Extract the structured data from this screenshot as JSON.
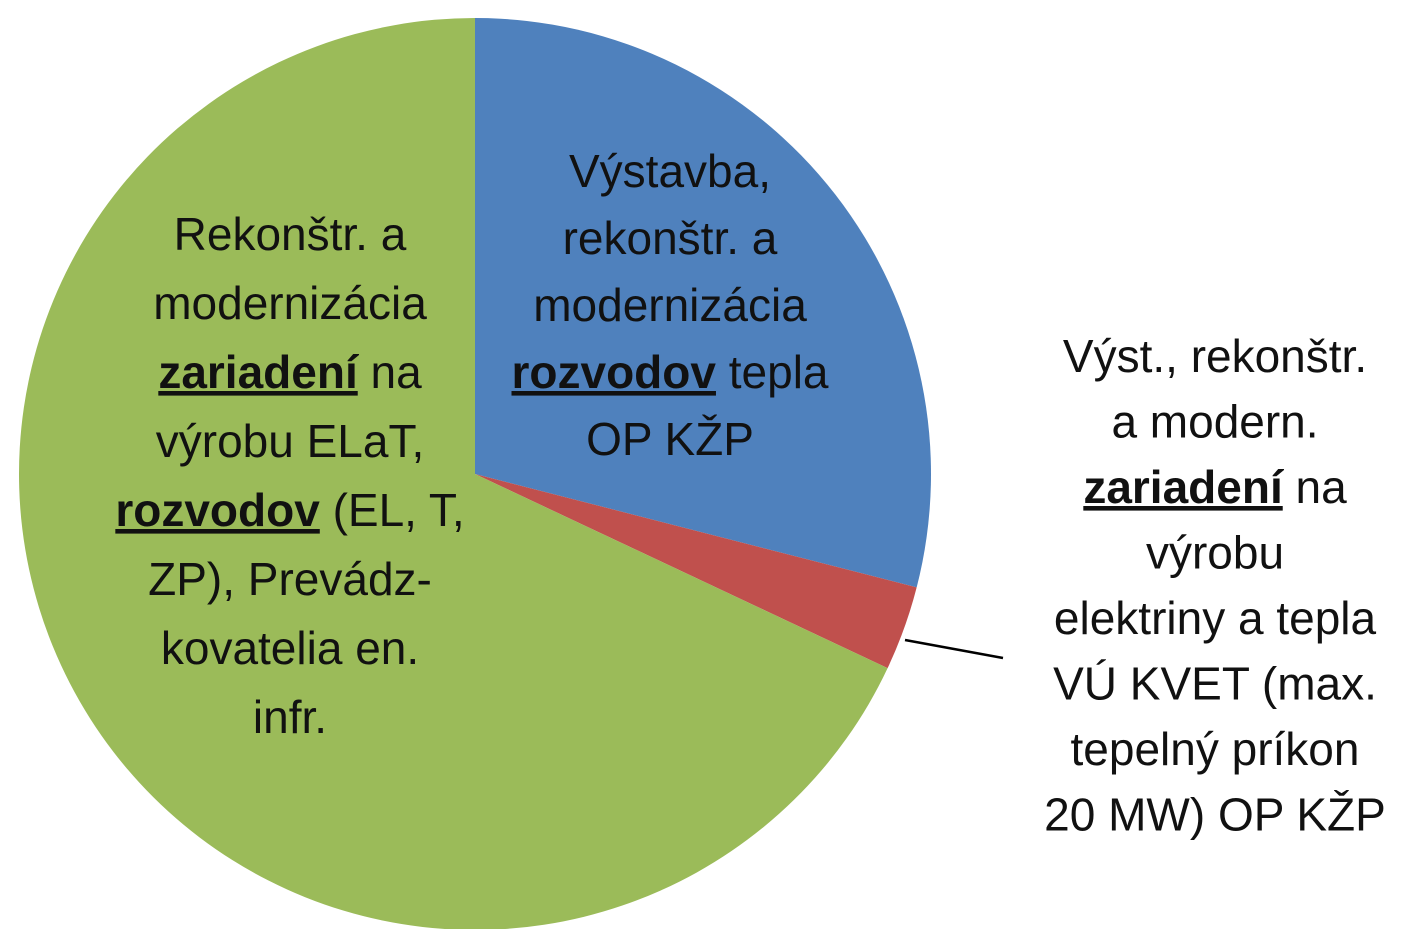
{
  "chart_data": {
    "type": "pie",
    "categories": [
      [
        [
          "Výstavba,"
        ],
        [
          "rekonštr. a"
        ],
        [
          "modernizácia"
        ],
        [
          {
            "text": "rozvodov",
            "emphasis": true
          },
          " tepla"
        ],
        [
          "OP KŽP"
        ]
      ],
      [
        [
          "Výst., rekonštr."
        ],
        [
          "a modern."
        ],
        [
          {
            "text": "zariadení",
            "emphasis": true
          },
          " na"
        ],
        [
          "výrobu"
        ],
        [
          "elektriny a tepla"
        ],
        [
          "VÚ KVET (max."
        ],
        [
          "tepelný príkon"
        ],
        [
          "20 MW) OP KŽP"
        ]
      ],
      [
        [
          "Rekonštr. a"
        ],
        [
          "modernizácia"
        ],
        [
          {
            "text": "zariadení",
            "emphasis": true
          },
          " na"
        ],
        [
          "výrobu ELaT,"
        ],
        [
          {
            "text": "rozvodov",
            "emphasis": true
          },
          " (EL, T,"
        ],
        [
          "ZP), Prevádz-"
        ],
        [
          "kovatelia en."
        ],
        [
          "infr."
        ]
      ]
    ],
    "values": [
      29,
      3,
      68
    ],
    "colors": [
      "#4f81bd",
      "#c0504d",
      "#9bbb59"
    ]
  }
}
